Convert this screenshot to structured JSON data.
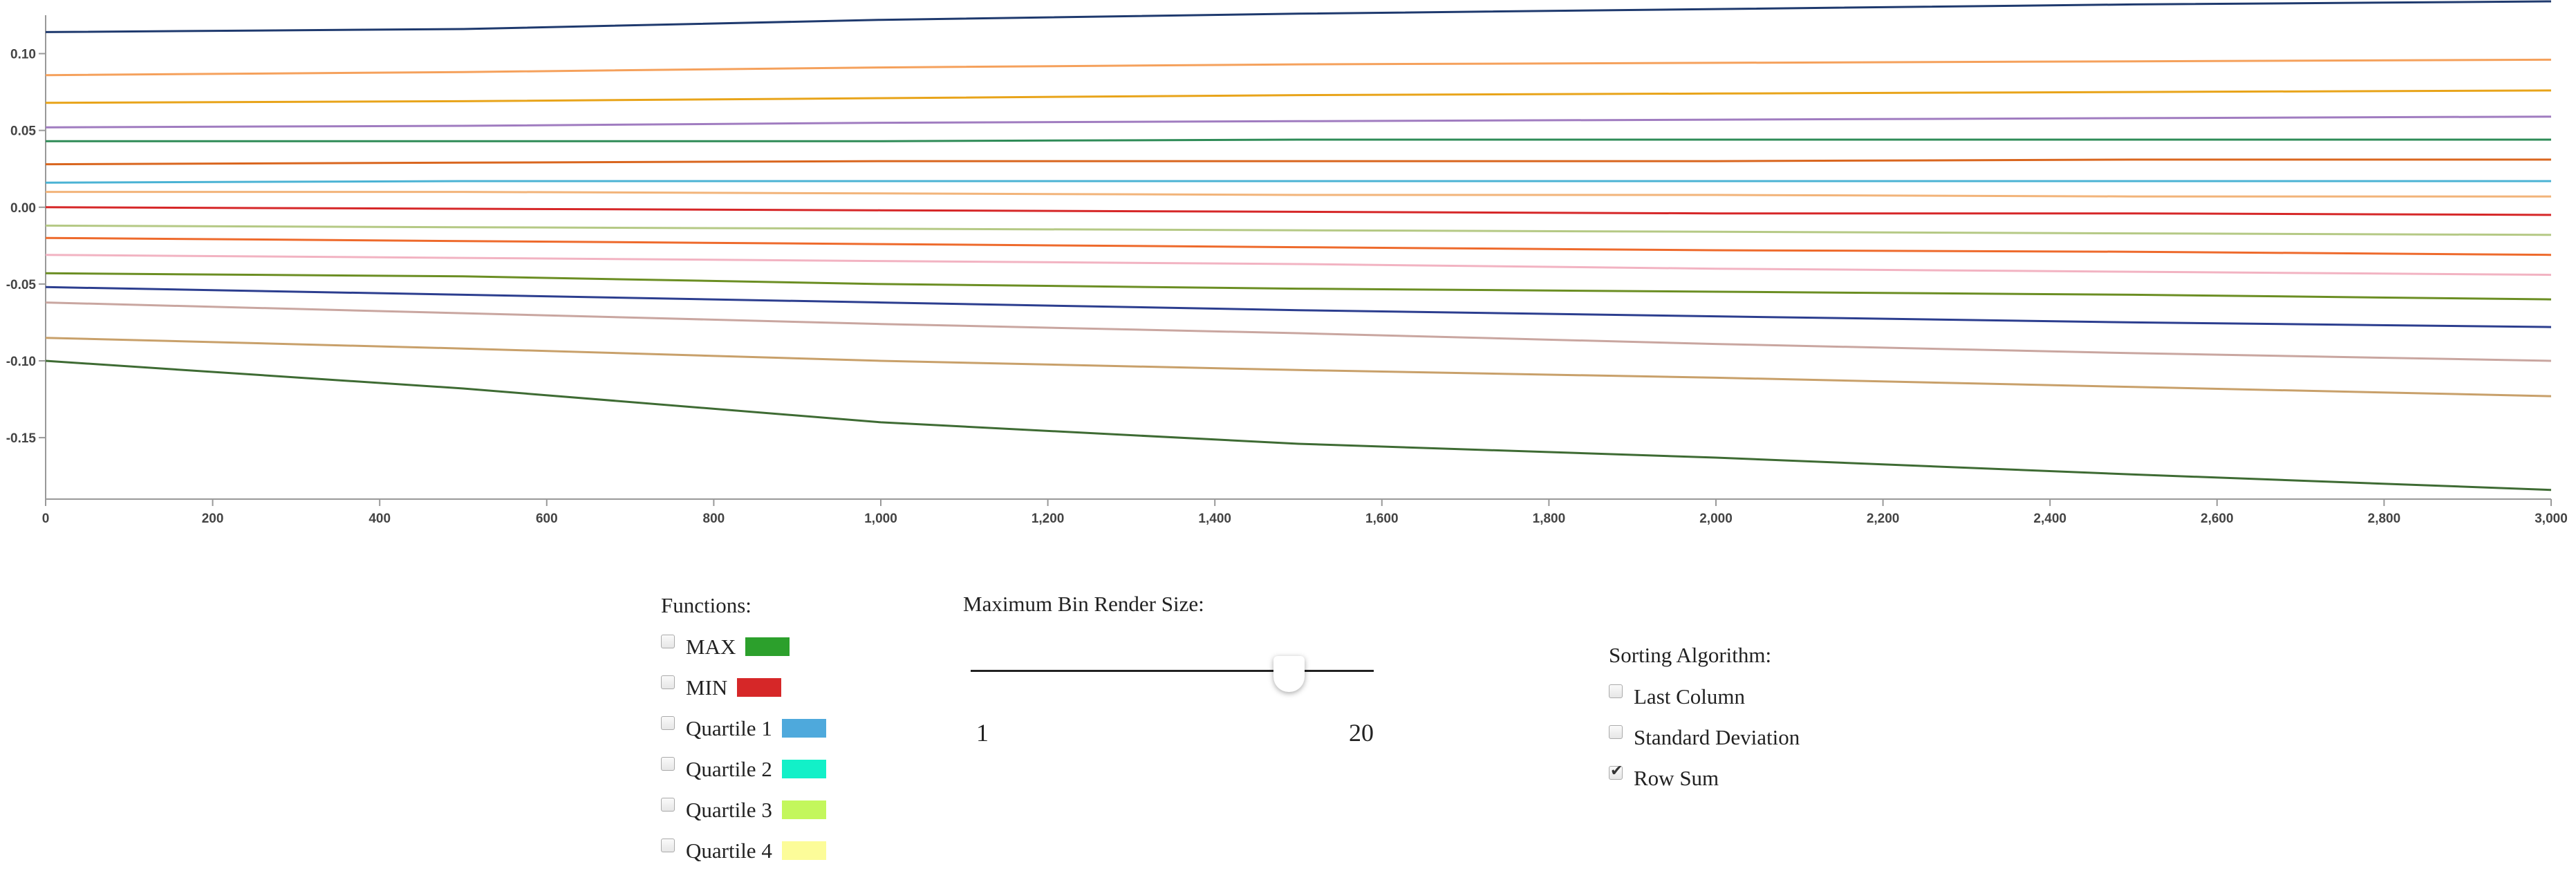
{
  "chart_data": {
    "type": "line",
    "title": "",
    "xlabel": "",
    "ylabel": "",
    "xlim": [
      0,
      3000
    ],
    "ylim": [
      -0.19,
      0.125
    ],
    "x_ticks": [
      "0",
      "200",
      "400",
      "600",
      "800",
      "1,000",
      "1,200",
      "1,400",
      "1,600",
      "1,800",
      "2,000",
      "2,200",
      "2,400",
      "2,600",
      "2,800",
      "3,000"
    ],
    "y_ticks": [
      "0.10",
      "0.05",
      "0.00",
      "-0.05",
      "-0.10",
      "-0.15"
    ],
    "grid": false,
    "x": [
      0,
      500,
      1000,
      1500,
      2000,
      2500,
      3000
    ],
    "series": [
      {
        "color": "#1f3a6e",
        "values": [
          0.114,
          0.116,
          0.122,
          0.126,
          0.129,
          0.132,
          0.134
        ]
      },
      {
        "color": "#f5a15c",
        "values": [
          0.086,
          0.088,
          0.091,
          0.093,
          0.094,
          0.095,
          0.096
        ]
      },
      {
        "color": "#e8a41a",
        "values": [
          0.068,
          0.069,
          0.071,
          0.073,
          0.074,
          0.075,
          0.076
        ]
      },
      {
        "color": "#a07cc0",
        "values": [
          0.052,
          0.053,
          0.055,
          0.056,
          0.057,
          0.058,
          0.059
        ]
      },
      {
        "color": "#2e8b57",
        "values": [
          0.043,
          0.043,
          0.043,
          0.044,
          0.044,
          0.044,
          0.044
        ]
      },
      {
        "color": "#d9661f",
        "values": [
          0.028,
          0.029,
          0.03,
          0.03,
          0.03,
          0.031,
          0.031
        ]
      },
      {
        "color": "#4bb3d4",
        "values": [
          0.016,
          0.017,
          0.017,
          0.017,
          0.017,
          0.017,
          0.017
        ]
      },
      {
        "color": "#f2b47a",
        "values": [
          0.01,
          0.01,
          0.009,
          0.008,
          0.008,
          0.007,
          0.007
        ]
      },
      {
        "color": "#d62728",
        "values": [
          0.0,
          -0.001,
          -0.002,
          -0.003,
          -0.004,
          -0.004,
          -0.005
        ]
      },
      {
        "color": "#b5c985",
        "values": [
          -0.012,
          -0.013,
          -0.014,
          -0.015,
          -0.016,
          -0.017,
          -0.018
        ]
      },
      {
        "color": "#ee6a2c",
        "values": [
          -0.02,
          -0.022,
          -0.024,
          -0.026,
          -0.028,
          -0.029,
          -0.031
        ]
      },
      {
        "color": "#f2b3c2",
        "values": [
          -0.031,
          -0.033,
          -0.035,
          -0.037,
          -0.04,
          -0.042,
          -0.044
        ]
      },
      {
        "color": "#6b8e23",
        "values": [
          -0.043,
          -0.045,
          -0.05,
          -0.053,
          -0.055,
          -0.057,
          -0.06
        ]
      },
      {
        "color": "#2c3e8f",
        "values": [
          -0.052,
          -0.057,
          -0.062,
          -0.067,
          -0.071,
          -0.075,
          -0.078
        ]
      },
      {
        "color": "#c9a6a0",
        "values": [
          -0.062,
          -0.069,
          -0.076,
          -0.082,
          -0.089,
          -0.095,
          -0.1
        ]
      },
      {
        "color": "#c8a06a",
        "values": [
          -0.085,
          -0.092,
          -0.1,
          -0.106,
          -0.111,
          -0.117,
          -0.123
        ]
      },
      {
        "color": "#3e6b33",
        "values": [
          -0.1,
          -0.118,
          -0.14,
          -0.154,
          -0.163,
          -0.174,
          -0.184
        ]
      }
    ]
  },
  "functions": {
    "title": "Functions:",
    "items": [
      {
        "label": "MAX",
        "color": "#2ca02c",
        "checked": false
      },
      {
        "label": "MIN",
        "color": "#d62728",
        "checked": false
      },
      {
        "label": "Quartile 1",
        "color": "#4ea9dc",
        "checked": false
      },
      {
        "label": "Quartile 2",
        "color": "#12f0c8",
        "checked": false
      },
      {
        "label": "Quartile 3",
        "color": "#c3f75c",
        "checked": false
      },
      {
        "label": "Quartile 4",
        "color": "#fcfc99",
        "checked": false
      }
    ]
  },
  "slider": {
    "title": "Maximum Bin Render Size:",
    "min_label": "1",
    "max_label": "20",
    "min": 1,
    "max": 20,
    "value": 16
  },
  "sorting": {
    "title": "Sorting Algorithm:",
    "items": [
      {
        "label": "Last Column",
        "checked": false
      },
      {
        "label": "Standard Deviation",
        "checked": false
      },
      {
        "label": "Row Sum",
        "checked": true
      }
    ]
  }
}
